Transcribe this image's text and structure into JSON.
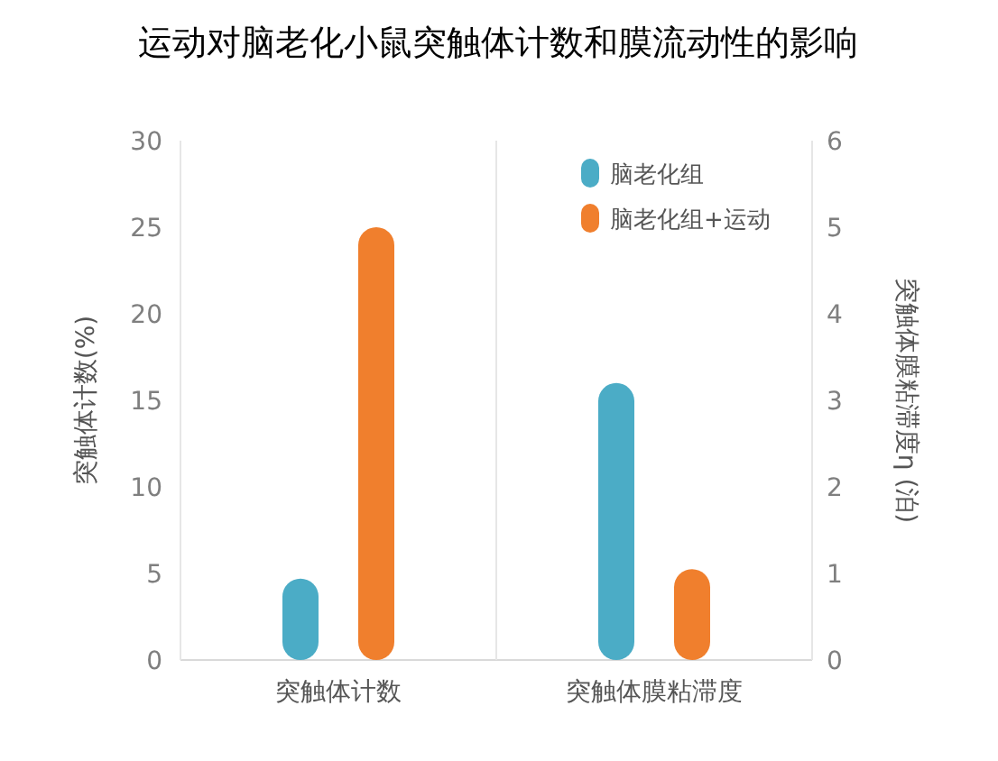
{
  "chart_data": {
    "type": "bar",
    "title": "运动对脑老化小鼠突触体计数和膜流动性的影响",
    "categories": [
      "突触体计数",
      "突触体膜粘滞度"
    ],
    "series": [
      {
        "name": "脑老化组",
        "color": "#4bacc6",
        "values": [
          4.7,
          null
        ]
      },
      {
        "name": "脑老化组+运动",
        "color": "#f07f2d",
        "values": [
          25,
          null
        ]
      },
      {
        "color": "#4bacc6",
        "values": [
          null,
          3.2
        ],
        "axis": "y2"
      },
      {
        "color": "#f07f2d",
        "values": [
          null,
          1.05
        ],
        "axis": "y2"
      }
    ],
    "ylabel": "突触体计数(%)",
    "y2label": "突触体膜粘滞度η (泊)",
    "ylim": [
      0,
      30
    ],
    "yticks": [
      0,
      5,
      10,
      15,
      20,
      25,
      30
    ],
    "y2lim": [
      0,
      6
    ],
    "y2ticks": [
      0,
      1,
      2,
      3,
      4,
      5,
      6
    ],
    "grid": "x",
    "legend": "top right"
  }
}
